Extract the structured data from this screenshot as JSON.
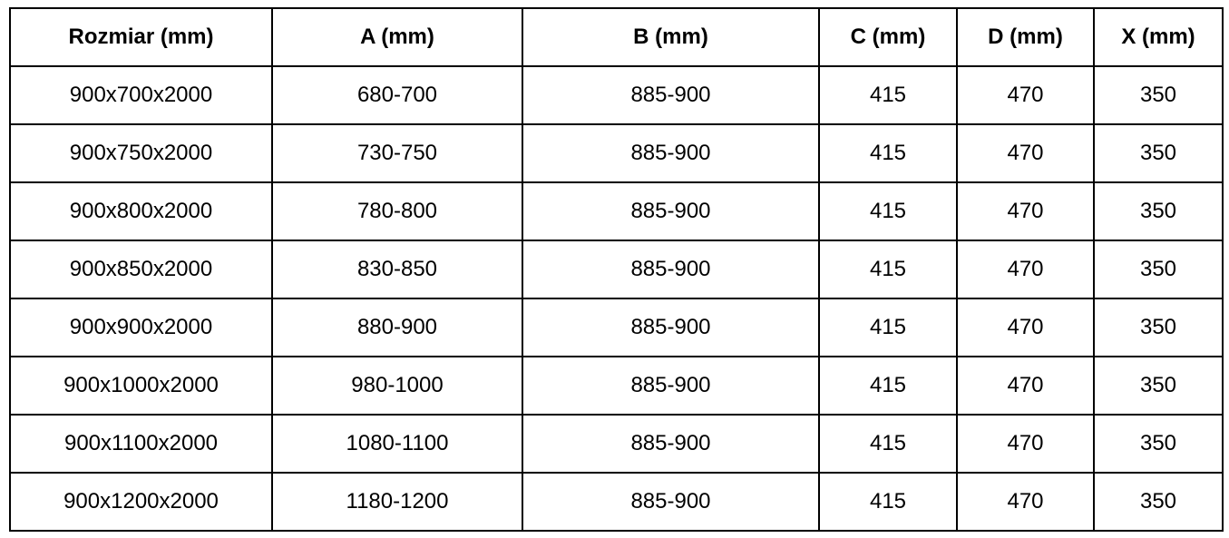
{
  "table": {
    "title": "size-specification-table",
    "columns": [
      "Rozmiar (mm)",
      "A (mm)",
      "B (mm)",
      "C (mm)",
      "D (mm)",
      "X (mm)"
    ],
    "rows": [
      [
        "900x700x2000",
        "680-700",
        "885-900",
        "415",
        "470",
        "350"
      ],
      [
        "900x750x2000",
        "730-750",
        "885-900",
        "415",
        "470",
        "350"
      ],
      [
        "900x800x2000",
        "780-800",
        "885-900",
        "415",
        "470",
        "350"
      ],
      [
        "900x850x2000",
        "830-850",
        "885-900",
        "415",
        "470",
        "350"
      ],
      [
        "900x900x2000",
        "880-900",
        "885-900",
        "415",
        "470",
        "350"
      ],
      [
        "900x1000x2000",
        "980-1000",
        "885-900",
        "415",
        "470",
        "350"
      ],
      [
        "900x1100x2000",
        "1080-1100",
        "885-900",
        "415",
        "470",
        "350"
      ],
      [
        "900x1200x2000",
        "1180-1200",
        "885-900",
        "415",
        "470",
        "350"
      ]
    ],
    "colors": {
      "border": "#000000",
      "text": "#000000",
      "background": "#ffffff"
    }
  }
}
